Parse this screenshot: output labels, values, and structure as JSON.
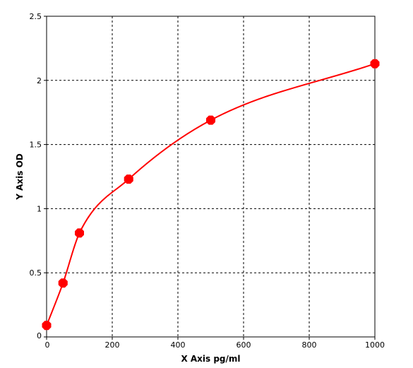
{
  "chart_data": {
    "type": "scatter",
    "title": "",
    "xlabel": "X Axis pg/ml",
    "ylabel": "Y Axis OD",
    "xlim": [
      0,
      1000
    ],
    "ylim": [
      0,
      2.5
    ],
    "xticks": [
      "0",
      "200",
      "400",
      "600",
      "800",
      "1000"
    ],
    "yticks": [
      "0",
      "0.5",
      "1",
      "1.5",
      "2",
      "2.5"
    ],
    "grid": true,
    "grid_style": "dashed",
    "series": [
      {
        "x": [
          0,
          50,
          100,
          250,
          500,
          1000
        ],
        "y": [
          0.09,
          0.42,
          0.81,
          1.23,
          1.69,
          2.13
        ],
        "color": "#ff0000",
        "fit": "smooth-curve"
      }
    ]
  }
}
